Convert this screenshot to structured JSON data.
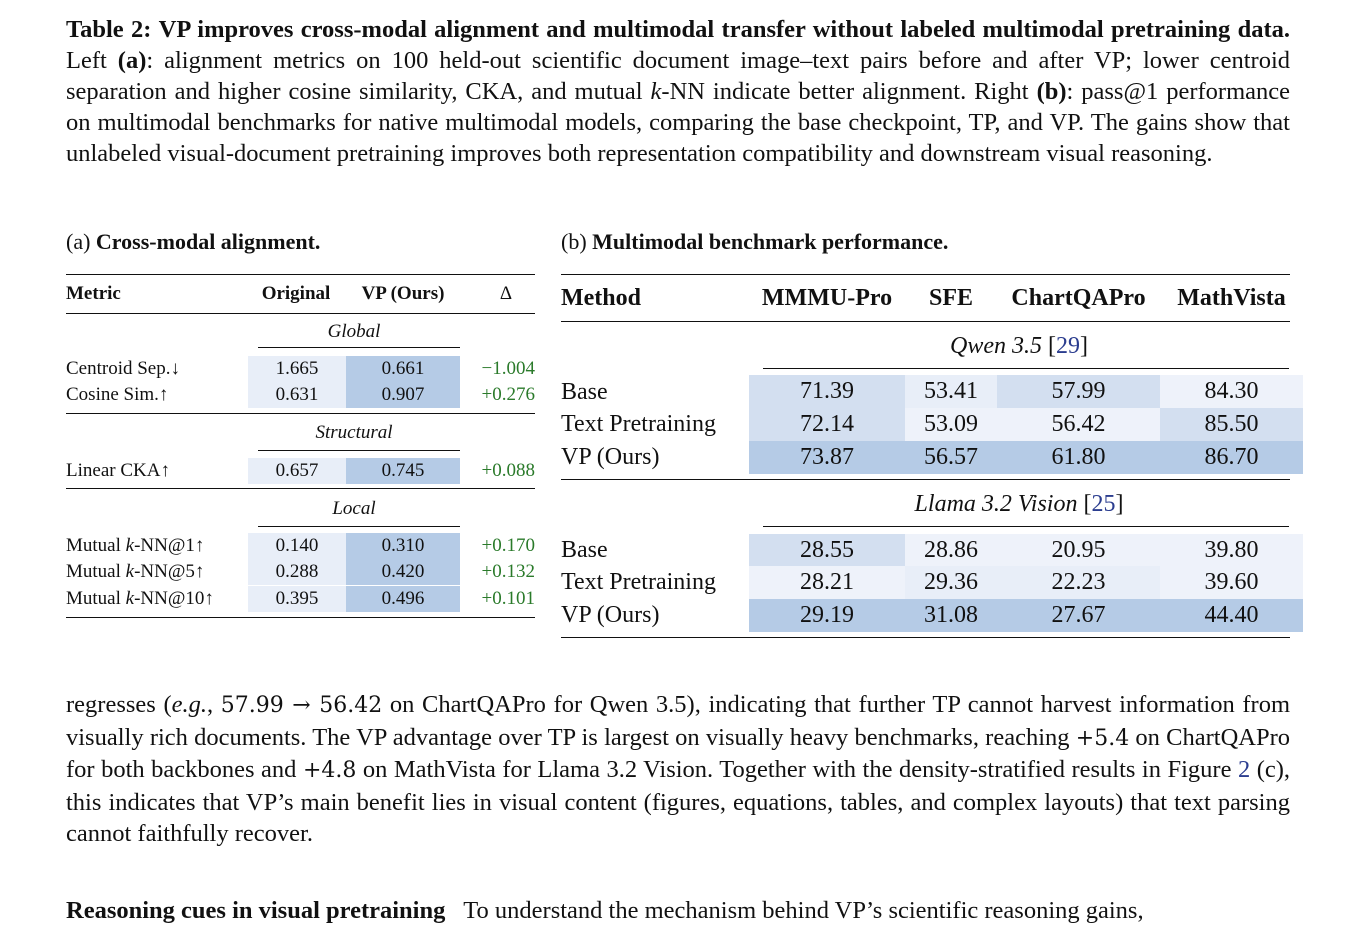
{
  "caption": {
    "label": "Table 2:",
    "bold_title": "VP improves cross-modal alignment and multimodal transfer without labeled multimodal pretraining data.",
    "text_1": "Left",
    "a_label": "(a)",
    "text_2": ": alignment metrics on 100 held-out scientific document image–text pairs before and after VP; lower centroid separation and higher cosine similarity, CKA, and mutual",
    "k": "k",
    "text_3": "-NN indicate better alignment. Right",
    "b_label": "(b)",
    "text_4": ": pass@1 performance on multimodal benchmarks for native multimodal models, comparing the base checkpoint, TP, and VP. The gains show that unlabeled visual-document pretraining improves both representation compatibility and downstream visual reasoning."
  },
  "table_a": {
    "sub_prefix": "(a)",
    "sub_title": "Cross-modal alignment.",
    "headers": [
      "Metric",
      "Original",
      "VP (Ours)",
      "Δ"
    ],
    "sections": {
      "global": "Global",
      "structural": "Structural",
      "local": "Local"
    },
    "rows": {
      "centroid": {
        "metric": "Centroid Sep.↓",
        "orig": "1.665",
        "vp": "0.661",
        "delta": "−1.004"
      },
      "cosine": {
        "metric": "Cosine Sim.↑",
        "orig": "0.631",
        "vp": "0.907",
        "delta": "+0.276"
      },
      "cka": {
        "metric": "Linear CKA↑",
        "orig": "0.657",
        "vp": "0.745",
        "delta": "+0.088"
      },
      "knn1": {
        "metric_pre": "Mutual ",
        "k": "k",
        "metric_post": "-NN@1↑",
        "orig": "0.140",
        "vp": "0.310",
        "delta": "+0.170"
      },
      "knn5": {
        "metric_pre": "Mutual ",
        "k": "k",
        "metric_post": "-NN@5↑",
        "orig": "0.288",
        "vp": "0.420",
        "delta": "+0.132"
      },
      "knn10": {
        "metric_pre": "Mutual ",
        "k": "k",
        "metric_post": "-NN@10↑",
        "orig": "0.395",
        "vp": "0.496",
        "delta": "+0.101"
      }
    }
  },
  "table_b": {
    "sub_prefix": "(b)",
    "sub_title": "Multimodal benchmark performance.",
    "headers": [
      "Method",
      "MMMU-Pro",
      "SFE",
      "ChartQAPro",
      "MathVista"
    ],
    "groups": {
      "qwen": {
        "name": "Qwen 3.5",
        "cite": "29"
      },
      "llama": {
        "name": "Llama 3.2 Vision",
        "cite": "25"
      }
    },
    "qwen_rows": [
      {
        "method": "Base",
        "vals": [
          "71.39",
          "53.41",
          "57.99",
          "84.30"
        ]
      },
      {
        "method": "Text Pretraining",
        "vals": [
          "72.14",
          "53.09",
          "56.42",
          "85.50"
        ]
      },
      {
        "method": "VP (Ours)",
        "vals": [
          "73.87",
          "56.57",
          "61.80",
          "86.70"
        ]
      }
    ],
    "llama_rows": [
      {
        "method": "Base",
        "vals": [
          "28.55",
          "28.86",
          "20.95",
          "39.80"
        ]
      },
      {
        "method": "Text Pretraining",
        "vals": [
          "28.21",
          "29.36",
          "22.23",
          "39.60"
        ]
      },
      {
        "method": "VP (Ours)",
        "vals": [
          "29.19",
          "31.08",
          "27.67",
          "44.40"
        ]
      }
    ]
  },
  "body": {
    "t1": "regresses (",
    "eg": "e.g.",
    "t2": ",",
    "m1": "57.99 → 56.42",
    "t3": "on ChartQAPro for Qwen 3.5), indicating that further TP cannot harvest information from visually rich documents. The VP advantage over TP is largest on visually heavy benchmarks, reaching",
    "m2": "+5.4",
    "t4": "on ChartQAPro for both backbones and",
    "m3": "+4.8",
    "t5": "on MathVista for Llama 3.2 Vision. Together with the density-stratified results in Figure",
    "fig": "2",
    "t6": "(c), this indicates that VP’s main benefit lies in visual content (figures, equations, tables, and complex layouts) that text parsing cannot faithfully recover."
  },
  "next_para": {
    "heading": "Reasoning cues in visual pretraining",
    "text": "To understand the mechanism behind VP’s scientific reasoning gains,"
  }
}
